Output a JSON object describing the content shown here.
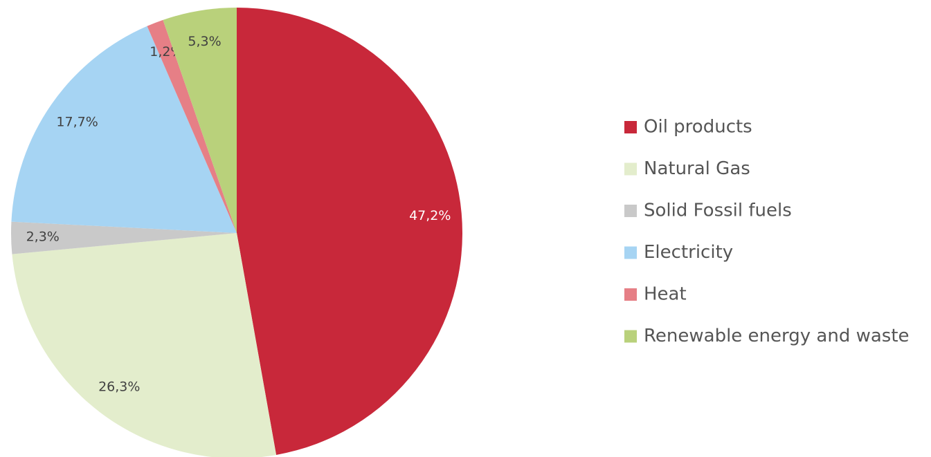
{
  "chart_data": {
    "type": "pie",
    "categories": [
      "Oil products",
      "Natural Gas",
      "Solid Fossil fuels",
      "Electricity",
      "Heat",
      "Renewable energy and waste"
    ],
    "values": [
      47.2,
      26.3,
      2.3,
      17.7,
      1.2,
      5.3
    ],
    "value_labels": [
      "47,2%",
      "26,3%",
      "2,3%",
      "17,7%",
      "1,2%",
      "5,3%"
    ],
    "colors": [
      "#c8283a",
      "#e3edcc",
      "#c9c9c9",
      "#a6d4f3",
      "#e67f86",
      "#b9d17b"
    ],
    "legend": "right"
  }
}
